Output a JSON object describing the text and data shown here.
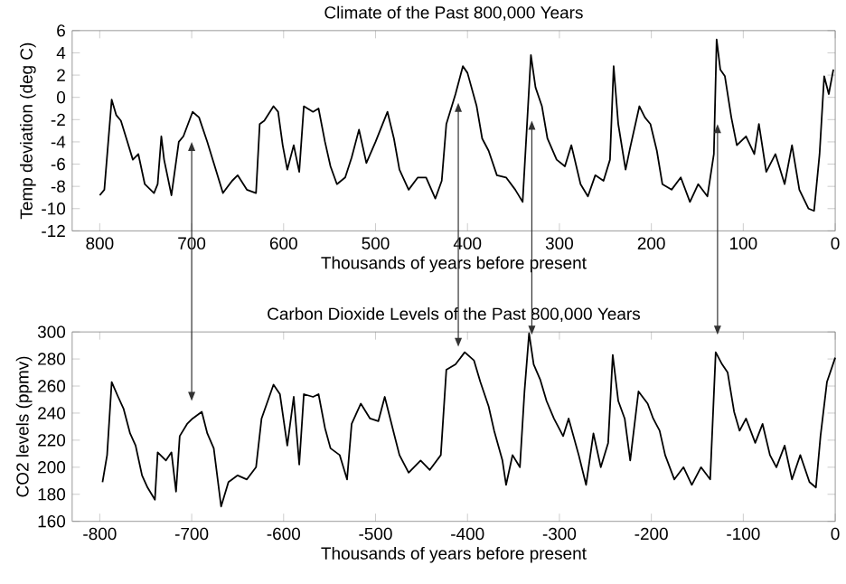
{
  "chart_data": [
    {
      "type": "line",
      "title": "Climate of the Past 800,000 Years",
      "xlabel": "Thousands of years before present",
      "ylabel": "Temp deviation (deg C)",
      "color": "#000000",
      "x": [
        800,
        795,
        787,
        782,
        777,
        771,
        764,
        758,
        751,
        741,
        737,
        733,
        730,
        722,
        714,
        709,
        699,
        692,
        683,
        676,
        666,
        656,
        650,
        640,
        630,
        626,
        621,
        611,
        606,
        601,
        596,
        589,
        583,
        578,
        568,
        562,
        555,
        549,
        542,
        533,
        526,
        518,
        510,
        500,
        487,
        480,
        474,
        464,
        454,
        445,
        435,
        428,
        423,
        413,
        405,
        400,
        390,
        384,
        377,
        368,
        358,
        348,
        340,
        335,
        331,
        326,
        319,
        313,
        303,
        294,
        287,
        277,
        269,
        261,
        252,
        245,
        241,
        236,
        228,
        223,
        213,
        207,
        201,
        194,
        188,
        178,
        168,
        158,
        149,
        139,
        132,
        129,
        125,
        120,
        113,
        107,
        97,
        88,
        83,
        75,
        65,
        55,
        47,
        39,
        29,
        23,
        17,
        12,
        7,
        2
      ],
      "values": [
        -8.8,
        -8.3,
        -0.2,
        -1.6,
        -2.1,
        -3.7,
        -5.6,
        -5.1,
        -7.8,
        -8.6,
        -7.8,
        -3.5,
        -5.6,
        -8.8,
        -4.0,
        -3.5,
        -1.3,
        -1.8,
        -4.0,
        -5.9,
        -8.6,
        -7.5,
        -7.0,
        -8.3,
        -8.6,
        -2.4,
        -2.1,
        -0.8,
        -1.3,
        -4.3,
        -6.5,
        -4.3,
        -6.7,
        -0.8,
        -1.3,
        -1.0,
        -4.0,
        -6.2,
        -7.8,
        -7.2,
        -5.4,
        -2.9,
        -5.9,
        -4.0,
        -1.3,
        -3.7,
        -6.5,
        -8.3,
        -7.2,
        -7.2,
        -9.1,
        -7.5,
        -2.4,
        0.3,
        2.8,
        2.2,
        -0.8,
        -3.7,
        -4.8,
        -7.0,
        -7.2,
        -8.3,
        -9.4,
        -2.1,
        3.8,
        0.9,
        -0.8,
        -3.7,
        -5.6,
        -6.2,
        -4.3,
        -7.8,
        -8.9,
        -7.0,
        -7.5,
        -5.6,
        2.8,
        -2.4,
        -6.5,
        -4.5,
        -0.8,
        -1.8,
        -2.4,
        -4.8,
        -7.8,
        -8.3,
        -7.2,
        -9.4,
        -7.8,
        -8.9,
        -5.1,
        5.2,
        2.5,
        1.9,
        -1.8,
        -4.3,
        -3.5,
        -5.1,
        -2.4,
        -6.7,
        -5.1,
        -7.8,
        -4.3,
        -8.3,
        -10.0,
        -10.2,
        -5.1,
        1.9,
        0.3,
        2.5
      ],
      "xlim": [
        830,
        0
      ],
      "ylim": [
        -12,
        6
      ],
      "xticks": [
        800,
        700,
        600,
        500,
        400,
        300,
        200,
        100,
        0
      ],
      "yticks": [
        -12,
        -10,
        -8,
        -6,
        -4,
        -2,
        0,
        2,
        4,
        6
      ]
    },
    {
      "type": "line",
      "title": "Carbon Dioxide Levels of the Past 800,000 Years",
      "xlabel": "Thousands of years before present",
      "ylabel": "CO2 levels (ppmv)",
      "color": "#000000",
      "x": [
        -797,
        -792,
        -787,
        -780,
        -774,
        -767,
        -761,
        -754,
        -748,
        -740,
        -737,
        -728,
        -722,
        -717,
        -713,
        -705,
        -699,
        -689,
        -683,
        -676,
        -668,
        -660,
        -650,
        -640,
        -630,
        -624,
        -611,
        -604,
        -596,
        -589,
        -583,
        -578,
        -568,
        -562,
        -555,
        -549,
        -539,
        -531,
        -526,
        -516,
        -506,
        -497,
        -490,
        -480,
        -474,
        -464,
        -451,
        -441,
        -429,
        -423,
        -413,
        -403,
        -393,
        -386,
        -377,
        -371,
        -362,
        -358,
        -351,
        -343,
        -338,
        -333,
        -328,
        -321,
        -314,
        -306,
        -296,
        -290,
        -279,
        -271,
        -263,
        -255,
        -247,
        -242,
        -236,
        -229,
        -223,
        -214,
        -204,
        -198,
        -191,
        -185,
        -175,
        -165,
        -156,
        -146,
        -136,
        -130,
        -123,
        -117,
        -110,
        -104,
        -97,
        -87,
        -79,
        -71,
        -64,
        -55,
        -47,
        -38,
        -28,
        -21,
        -16,
        -9,
        0
      ],
      "values": [
        189,
        209,
        263,
        252,
        243,
        225,
        216,
        194,
        185,
        176,
        211,
        205,
        211,
        182,
        223,
        232,
        236,
        241,
        225,
        214,
        171,
        189,
        194,
        191,
        200,
        236,
        261,
        254,
        216,
        252,
        202,
        254,
        252,
        254,
        229,
        214,
        209,
        191,
        232,
        247,
        236,
        234,
        252,
        225,
        209,
        196,
        205,
        198,
        209,
        272,
        276,
        285,
        279,
        263,
        245,
        227,
        205,
        187,
        209,
        200,
        256,
        299,
        276,
        265,
        249,
        236,
        223,
        236,
        209,
        187,
        225,
        200,
        218,
        283,
        249,
        236,
        205,
        256,
        247,
        236,
        227,
        209,
        191,
        200,
        187,
        200,
        191,
        285,
        276,
        270,
        241,
        227,
        236,
        218,
        232,
        209,
        200,
        216,
        191,
        209,
        189,
        185,
        223,
        263,
        281
      ],
      "xlim": [
        -830,
        0
      ],
      "ylim": [
        160,
        300
      ],
      "xticks": [
        -800,
        -700,
        -600,
        -500,
        -400,
        -300,
        -200,
        -100,
        0
      ],
      "yticks": [
        160,
        180,
        200,
        220,
        240,
        260,
        280,
        300
      ]
    }
  ]
}
